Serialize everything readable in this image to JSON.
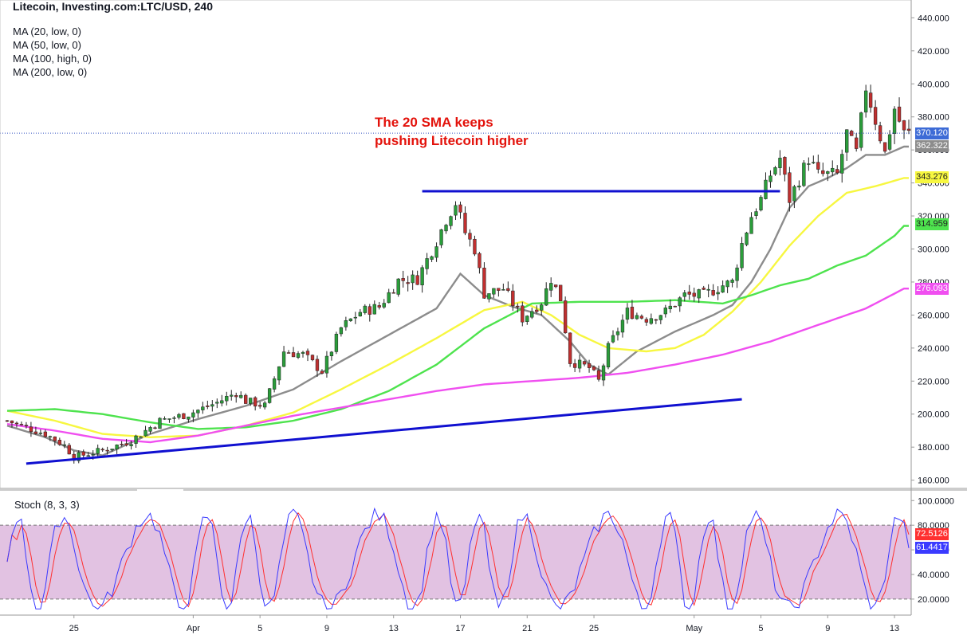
{
  "header": {
    "title": "Litecoin, Investing.com:LTC/USD, 240",
    "ma_legend": [
      "MA (20, low, 0)",
      "MA (50, low, 0)",
      "MA (100, high, 0)",
      "MA (200, low, 0)"
    ]
  },
  "annotation": {
    "line1": "The 20 SMA keeps",
    "line2": "pushing Litecoin higher"
  },
  "colors": {
    "up": "#2a9d3a",
    "down": "#c03030",
    "ma20": "#8c8c8c",
    "ma50": "#f7f740",
    "ma100": "#4ee34e",
    "ma200": "#f04ff0",
    "trend": "#1010d0",
    "stoch_k": "#3a3aff",
    "stoch_d": "#ff3030",
    "stoch_band": "#e2c2e2"
  },
  "chart_data": [
    {
      "type": "candlestick",
      "y_axis": {
        "ylim": [
          155,
          445
        ],
        "ticks": [
          "160.000",
          "180.000",
          "200.000",
          "220.000",
          "240.000",
          "260.000",
          "280.000",
          "300.000",
          "320.000",
          "340.000",
          "360.000",
          "380.000",
          "400.000",
          "420.000",
          "440.000"
        ],
        "position": "right"
      },
      "x_axis": {
        "tick_labels": [
          "25",
          "Apr",
          "5",
          "9",
          "13",
          "17",
          "21",
          "25",
          "May",
          "5",
          "9",
          "13"
        ],
        "tick_index": [
          14,
          39,
          53,
          67,
          81,
          95,
          109,
          123,
          144,
          158,
          172,
          186
        ]
      },
      "count": 190,
      "last_prices": {
        "close": "370.120",
        "ma20": "362.322",
        "ma50": "343.276",
        "ma100": "314.959",
        "ma200": "276.093"
      },
      "keypoints": [
        [
          0,
          196
        ],
        [
          8,
          188
        ],
        [
          12,
          181
        ],
        [
          14,
          174
        ],
        [
          20,
          178
        ],
        [
          26,
          184
        ],
        [
          32,
          196
        ],
        [
          38,
          200
        ],
        [
          44,
          207
        ],
        [
          48,
          213
        ],
        [
          50,
          208
        ],
        [
          54,
          205
        ],
        [
          58,
          238
        ],
        [
          62,
          236
        ],
        [
          66,
          226
        ],
        [
          70,
          252
        ],
        [
          74,
          262
        ],
        [
          78,
          265
        ],
        [
          82,
          281
        ],
        [
          86,
          282
        ],
        [
          90,
          305
        ],
        [
          92,
          318
        ],
        [
          94,
          328
        ],
        [
          96,
          310
        ],
        [
          98,
          300
        ],
        [
          100,
          273
        ],
        [
          104,
          276
        ],
        [
          108,
          258
        ],
        [
          112,
          268
        ],
        [
          114,
          282
        ],
        [
          116,
          270
        ],
        [
          118,
          232
        ],
        [
          122,
          228
        ],
        [
          124,
          220
        ],
        [
          126,
          240
        ],
        [
          130,
          262
        ],
        [
          134,
          258
        ],
        [
          138,
          262
        ],
        [
          142,
          272
        ],
        [
          146,
          272
        ],
        [
          150,
          278
        ],
        [
          152,
          280
        ],
        [
          154,
          303
        ],
        [
          156,
          320
        ],
        [
          158,
          330
        ],
        [
          160,
          345
        ],
        [
          162,
          355
        ],
        [
          164,
          330
        ],
        [
          168,
          355
        ],
        [
          170,
          345
        ],
        [
          174,
          345
        ],
        [
          176,
          370
        ],
        [
          178,
          358
        ],
        [
          180,
          398
        ],
        [
          182,
          378
        ],
        [
          184,
          358
        ],
        [
          186,
          385
        ],
        [
          188,
          370
        ]
      ],
      "moving_averages": [
        {
          "name": "MA (20, low, 0)",
          "keypoints": [
            [
              0,
              193
            ],
            [
              8,
              186
            ],
            [
              14,
              178
            ],
            [
              20,
              175
            ],
            [
              30,
              188
            ],
            [
              40,
              197
            ],
            [
              50,
              205
            ],
            [
              60,
              215
            ],
            [
              70,
              232
            ],
            [
              80,
              248
            ],
            [
              90,
              264
            ],
            [
              95,
              285
            ],
            [
              100,
              272
            ],
            [
              106,
              265
            ],
            [
              112,
              260
            ],
            [
              118,
              244
            ],
            [
              122,
              230
            ],
            [
              126,
              224
            ],
            [
              132,
              238
            ],
            [
              140,
              250
            ],
            [
              148,
              260
            ],
            [
              152,
              266
            ],
            [
              156,
              280
            ],
            [
              160,
              300
            ],
            [
              164,
              325
            ],
            [
              168,
              338
            ],
            [
              172,
              343
            ],
            [
              176,
              349
            ],
            [
              180,
              357
            ],
            [
              184,
              357
            ],
            [
              188,
              362
            ]
          ]
        },
        {
          "name": "MA (50, low, 0)",
          "keypoints": [
            [
              0,
              202
            ],
            [
              10,
              196
            ],
            [
              20,
              188
            ],
            [
              30,
              186
            ],
            [
              40,
              187
            ],
            [
              50,
              193
            ],
            [
              60,
              201
            ],
            [
              70,
              215
            ],
            [
              80,
              230
            ],
            [
              90,
              246
            ],
            [
              100,
              263
            ],
            [
              108,
              268
            ],
            [
              114,
              260
            ],
            [
              120,
              248
            ],
            [
              126,
              240
            ],
            [
              134,
              238
            ],
            [
              140,
              240
            ],
            [
              146,
              248
            ],
            [
              152,
              262
            ],
            [
              158,
              280
            ],
            [
              164,
              302
            ],
            [
              170,
              320
            ],
            [
              176,
              334
            ],
            [
              182,
              338
            ],
            [
              188,
              343
            ]
          ]
        },
        {
          "name": "MA (100, high, 0)",
          "keypoints": [
            [
              0,
              202
            ],
            [
              10,
              203
            ],
            [
              20,
              200
            ],
            [
              30,
              195
            ],
            [
              40,
              191
            ],
            [
              50,
              192
            ],
            [
              60,
              196
            ],
            [
              70,
              203
            ],
            [
              80,
              214
            ],
            [
              90,
              230
            ],
            [
              100,
              252
            ],
            [
              110,
              267
            ],
            [
              120,
              268
            ],
            [
              130,
              268
            ],
            [
              140,
              269
            ],
            [
              150,
              267
            ],
            [
              156,
              272
            ],
            [
              162,
              278
            ],
            [
              168,
              282
            ],
            [
              174,
              290
            ],
            [
              180,
              296
            ],
            [
              186,
              308
            ],
            [
              188,
              314
            ]
          ]
        },
        {
          "name": "MA (200, low, 0)",
          "keypoints": [
            [
              0,
              194
            ],
            [
              10,
              190
            ],
            [
              20,
              185
            ],
            [
              30,
              183
            ],
            [
              40,
              187
            ],
            [
              50,
              193
            ],
            [
              60,
              199
            ],
            [
              70,
              204
            ],
            [
              80,
              209
            ],
            [
              90,
              214
            ],
            [
              100,
              218
            ],
            [
              110,
              220
            ],
            [
              120,
              222
            ],
            [
              130,
              225
            ],
            [
              140,
              230
            ],
            [
              150,
              236
            ],
            [
              160,
              244
            ],
            [
              170,
              254
            ],
            [
              180,
              264
            ],
            [
              188,
              276
            ]
          ]
        }
      ],
      "trendlines": [
        {
          "from": [
            4,
            170
          ],
          "to": [
            154,
            209
          ]
        },
        {
          "from": [
            87,
            335
          ],
          "to": [
            162,
            335
          ]
        }
      ]
    },
    {
      "type": "line",
      "title": "Stoch (8, 3, 3)",
      "ylim": [
        7,
        106
      ],
      "ticks": [
        "20.0000",
        "40.0000",
        "60.0000",
        "80.0000",
        "100.0000"
      ],
      "band": [
        20,
        80
      ],
      "last_values": {
        "k": "61.4417",
        "d": "72.5126"
      }
    }
  ]
}
